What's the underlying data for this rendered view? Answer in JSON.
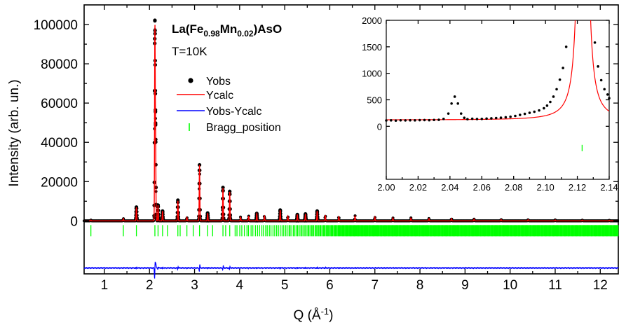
{
  "chart_data": {
    "type": "line",
    "title": "La(Fe0.98Mn0.02)AsO",
    "title_parts": {
      "base": "La(Fe",
      "sub1": "0.98",
      "mid": "Mn",
      "sub2": "0.02",
      "end": ")AsO"
    },
    "subtitle": "T=10K",
    "xlabel_main": "Q (Å",
    "xlabel_sup": "-1",
    "xlabel_end": ")",
    "ylabel": "Intensity (arb. un.)",
    "xlim": [
      0.55,
      12.4
    ],
    "ylim": [
      -27000,
      110000
    ],
    "x_ticks": [
      1,
      2,
      3,
      4,
      5,
      6,
      7,
      8,
      9,
      10,
      11,
      12
    ],
    "x_tick_labels": [
      "1",
      "2",
      "3",
      "4",
      "5",
      "6",
      "7",
      "8",
      "9",
      "10",
      "11",
      "12"
    ],
    "y_ticks": [
      0,
      20000,
      40000,
      60000,
      80000,
      100000
    ],
    "y_tick_labels": [
      "0",
      "20000",
      "40000",
      "60000",
      "80000",
      "100000"
    ],
    "legend": {
      "position": "upper-left",
      "entries": [
        {
          "name": "Yobs",
          "color": "#000000",
          "marker": "dot"
        },
        {
          "name": "Ycalc",
          "color": "#ff0000",
          "marker": "line"
        },
        {
          "name": "Yobs-Ycalc",
          "color": "#0000ff",
          "marker": "line"
        },
        {
          "name": "Bragg_position",
          "color": "#00ff00",
          "marker": "vbar"
        }
      ]
    },
    "colors": {
      "obs": "#000000",
      "calc": "#ff0000",
      "diff": "#0000ff",
      "bragg": "#00ff00"
    },
    "bragg_row_y": -5000,
    "diff_offset_y": -24000,
    "peaks": [
      {
        "q": 0.7,
        "y": 400
      },
      {
        "q": 1.42,
        "y": 1200
      },
      {
        "q": 1.71,
        "y": 7000
      },
      {
        "q": 2.12,
        "y": 99000
      },
      {
        "q": 2.135,
        "y": 42000
      },
      {
        "q": 2.19,
        "y": 8000
      },
      {
        "q": 2.29,
        "y": 5000
      },
      {
        "q": 2.63,
        "y": 10500
      },
      {
        "q": 2.83,
        "y": 1800
      },
      {
        "q": 3.11,
        "y": 28500
      },
      {
        "q": 3.29,
        "y": 4000
      },
      {
        "q": 3.63,
        "y": 17000
      },
      {
        "q": 3.78,
        "y": 15000
      },
      {
        "q": 4.02,
        "y": 2000
      },
      {
        "q": 4.2,
        "y": 2500
      },
      {
        "q": 4.38,
        "y": 3800
      },
      {
        "q": 4.55,
        "y": 2500
      },
      {
        "q": 4.9,
        "y": 5500
      },
      {
        "q": 5.07,
        "y": 2500
      },
      {
        "q": 5.28,
        "y": 3200
      },
      {
        "q": 5.46,
        "y": 3500
      },
      {
        "q": 5.72,
        "y": 5000
      },
      {
        "q": 5.9,
        "y": 2800
      },
      {
        "q": 6.2,
        "y": 2200
      },
      {
        "q": 6.56,
        "y": 2600
      },
      {
        "q": 7.0,
        "y": 1900
      },
      {
        "q": 7.4,
        "y": 1500
      },
      {
        "q": 7.8,
        "y": 1500
      },
      {
        "q": 8.2,
        "y": 1200
      },
      {
        "q": 8.7,
        "y": 1200
      },
      {
        "q": 9.2,
        "y": 900
      },
      {
        "q": 9.8,
        "y": 700
      },
      {
        "q": 10.4,
        "y": 600
      },
      {
        "q": 11.0,
        "y": 500
      },
      {
        "q": 11.6,
        "y": 400
      },
      {
        "q": 12.2,
        "y": 300
      }
    ],
    "bragg_positions": [
      0.7,
      1.42,
      1.71,
      2.12,
      2.19,
      2.29,
      2.4,
      2.63,
      2.68,
      2.83,
      2.97,
      3.11,
      3.29,
      3.4,
      3.63,
      3.69,
      3.78
    ],
    "bragg_dense_from": 3.9,
    "inset": {
      "xlim": [
        2.0,
        2.14
      ],
      "ylim": [
        -1000,
        2000
      ],
      "x_ticks": [
        2.0,
        2.02,
        2.04,
        2.06,
        2.08,
        2.1,
        2.12,
        2.14
      ],
      "x_tick_labels": [
        "2.00",
        "2.02",
        "2.04",
        "2.06",
        "2.08",
        "2.10",
        "2.12",
        "2.14"
      ],
      "y_ticks": [
        0,
        500,
        1000,
        1500,
        2000
      ],
      "y_tick_labels": [
        "0",
        "500",
        "1000",
        "1500",
        "2000"
      ],
      "background": 120,
      "calc_peak_center": 2.1235,
      "obs_points": [
        [
          2.0,
          110
        ],
        [
          2.003,
          112
        ],
        [
          2.006,
          108
        ],
        [
          2.009,
          113
        ],
        [
          2.012,
          111
        ],
        [
          2.015,
          114
        ],
        [
          2.018,
          112
        ],
        [
          2.021,
          116
        ],
        [
          2.024,
          118
        ],
        [
          2.027,
          115
        ],
        [
          2.03,
          120
        ],
        [
          2.033,
          122
        ],
        [
          2.036,
          140
        ],
        [
          2.039,
          240
        ],
        [
          2.041,
          430
        ],
        [
          2.043,
          560
        ],
        [
          2.045,
          430
        ],
        [
          2.047,
          240
        ],
        [
          2.049,
          160
        ],
        [
          2.051,
          135
        ],
        [
          2.054,
          142
        ],
        [
          2.057,
          138
        ],
        [
          2.06,
          140
        ],
        [
          2.063,
          146
        ],
        [
          2.066,
          150
        ],
        [
          2.069,
          156
        ],
        [
          2.072,
          162
        ],
        [
          2.075,
          170
        ],
        [
          2.078,
          180
        ],
        [
          2.081,
          196
        ],
        [
          2.084,
          215
        ],
        [
          2.087,
          235
        ],
        [
          2.09,
          255
        ],
        [
          2.093,
          275
        ],
        [
          2.096,
          300
        ],
        [
          2.099,
          340
        ],
        [
          2.101,
          390
        ],
        [
          2.103,
          460
        ],
        [
          2.105,
          560
        ],
        [
          2.107,
          700
        ],
        [
          2.109,
          880
        ],
        [
          2.111,
          1100
        ],
        [
          2.113,
          1500
        ],
        [
          2.131,
          1580
        ],
        [
          2.133,
          1130
        ],
        [
          2.135,
          870
        ],
        [
          2.137,
          700
        ],
        [
          2.139,
          600
        ],
        [
          2.14,
          530
        ]
      ],
      "bragg_tick_q": 2.123
    }
  }
}
